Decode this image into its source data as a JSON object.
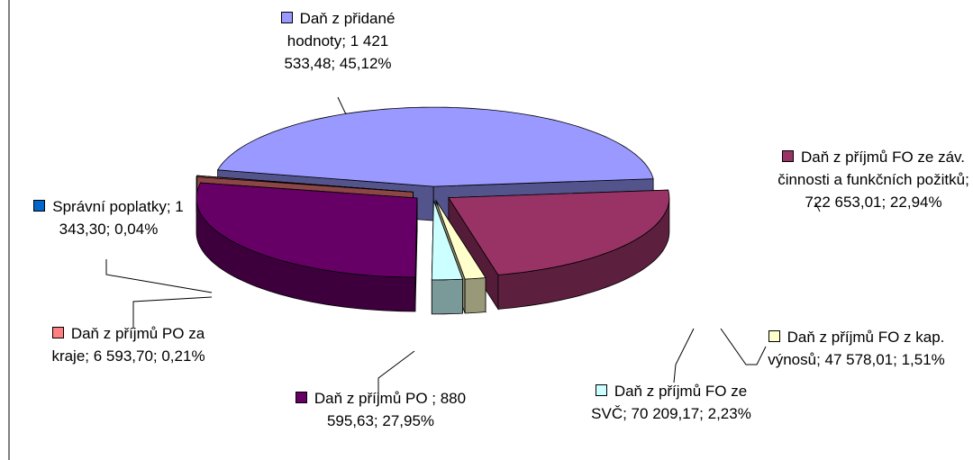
{
  "chart_data": {
    "type": "pie3d",
    "labels": [
      "Daň z přidané hodnoty; 1 421 533,48; 45,12%",
      "Daň z příjmů FO ze záv. činnosti a funkčních požitků; 722 653,01; 22,94%",
      "Daň z příjmů FO z kap. výnosů; 47 578,01; 1,51%",
      "Daň z příjmů FO ze SVČ; 70 209,17; 2,23%",
      "Daň z příjmů PO ; 880 595,63; 27,95%",
      "Daň z příjmů PO za kraje; 6 593,70; 0,21%",
      "Správní poplatky; 1 343,30; 0,04%"
    ],
    "values": [
      1421533.48,
      722653.01,
      47578.01,
      70209.17,
      880595.63,
      6593.7,
      1343.3
    ],
    "percents": [
      45.12,
      22.94,
      1.51,
      2.23,
      27.95,
      0.21,
      0.04
    ],
    "colors": [
      "#9999ff",
      "#993366",
      "#ffffcc",
      "#ccffff",
      "#660066",
      "#ff8080",
      "#0066cc"
    ]
  }
}
